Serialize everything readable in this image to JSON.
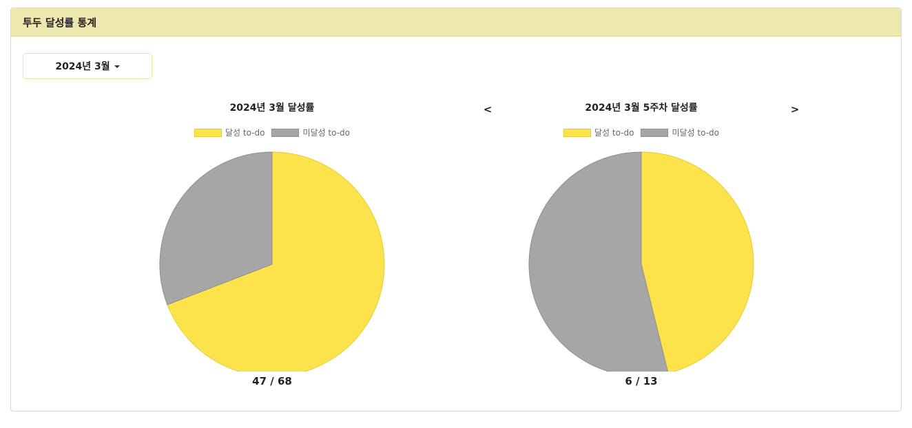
{
  "header": {
    "title": "투두 달성률 통계"
  },
  "month_selector": {
    "value": "2024년 3월"
  },
  "nav": {
    "prev": "<",
    "next": ">"
  },
  "colors": {
    "achieved": "#fde34b",
    "achieved_border": "#e8cc2e",
    "not_achieved": "#a6a6a6",
    "not_achieved_border": "#8e8e8e"
  },
  "chart_data": [
    {
      "type": "pie",
      "title": "2024년 3월 달성률",
      "categories": [
        "달성 to-do",
        "미달성 to-do"
      ],
      "values": [
        47,
        21
      ],
      "count_label": "47 / 68"
    },
    {
      "type": "pie",
      "title": "2024년 3월 5주차 달성률",
      "categories": [
        "달성 to-do",
        "미달성 to-do"
      ],
      "values": [
        6,
        7
      ],
      "count_label": "6 / 13"
    }
  ]
}
